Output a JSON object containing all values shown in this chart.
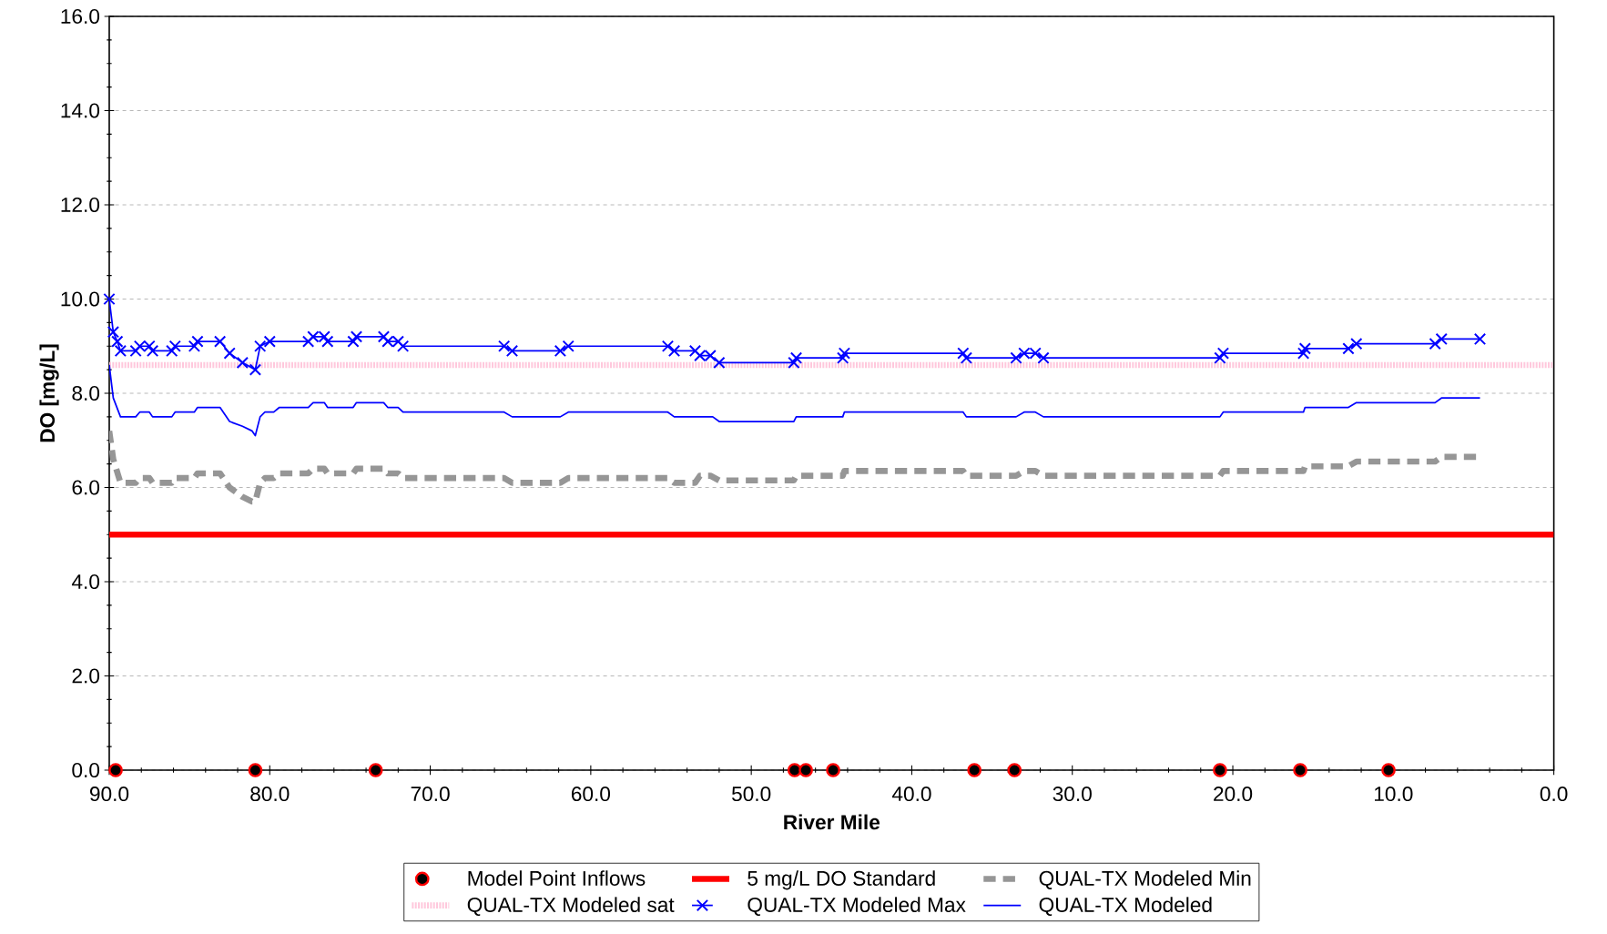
{
  "chart_data": {
    "type": "line",
    "xlabel": "River Mile",
    "ylabel": "DO [mg/L]",
    "xlim": [
      90,
      0
    ],
    "ylim": [
      0,
      16
    ],
    "xticks": [
      {
        "value": 90,
        "label": "90.0"
      },
      {
        "value": 80,
        "label": "80.0"
      },
      {
        "value": 70,
        "label": "70.0"
      },
      {
        "value": 60,
        "label": "60.0"
      },
      {
        "value": 50,
        "label": "50.0"
      },
      {
        "value": 40,
        "label": "40.0"
      },
      {
        "value": 30,
        "label": "30.0"
      },
      {
        "value": 20,
        "label": "20.0"
      },
      {
        "value": 10,
        "label": "10.0"
      },
      {
        "value": 0,
        "label": "0.0"
      }
    ],
    "yticks": [
      {
        "value": 0,
        "label": "0.0"
      },
      {
        "value": 2,
        "label": "2.0"
      },
      {
        "value": 4,
        "label": "4.0"
      },
      {
        "value": 6,
        "label": "6.0"
      },
      {
        "value": 8,
        "label": "8.0"
      },
      {
        "value": 10,
        "label": "10.0"
      },
      {
        "value": 12,
        "label": "12.0"
      },
      {
        "value": 14,
        "label": "14.0"
      },
      {
        "value": 16,
        "label": "16.0"
      }
    ],
    "grid": "y",
    "legend": "bottom",
    "series": [
      {
        "name": "Model Point Inflows",
        "type": "scatter",
        "marker": "circle",
        "color": "#ff0000",
        "x": [
          89.6,
          80.9,
          73.4,
          47.3,
          46.6,
          44.9,
          36.1,
          33.6,
          20.8,
          15.8,
          10.3
        ],
        "values": [
          0,
          0,
          0,
          0,
          0,
          0,
          0,
          0,
          0,
          0,
          0
        ]
      },
      {
        "name": "5 mg/L DO Standard",
        "line_style": "solid",
        "color": "#ff0000",
        "x": [
          90,
          0
        ],
        "values": [
          5,
          5
        ]
      },
      {
        "name": "QUAL-TX Modeled Min",
        "line_style": "dashed",
        "color": "#969696",
        "x": [
          90,
          89.75,
          89.3,
          88.35,
          88.1,
          87.5,
          87.3,
          86.1,
          85.9,
          84.7,
          84.5,
          83.1,
          82.5,
          82.1,
          81.7,
          81.1,
          80.9,
          80.6,
          80.3,
          79.75,
          79.4,
          77.6,
          77.3,
          76.6,
          76.4,
          74.8,
          74.6,
          72.9,
          72.65,
          72.0,
          71.7,
          65.4,
          64.9,
          61.9,
          61.4,
          55.2,
          54.8,
          53.5,
          53.2,
          52.55,
          52.0,
          47.35,
          47.2,
          44.3,
          44.2,
          36.8,
          36.6,
          33.5,
          33.0,
          32.3,
          31.8,
          20.8,
          20.6,
          15.6,
          15.5,
          12.8,
          12.3,
          7.4,
          7.0,
          4.6
        ],
        "values": [
          7.2,
          6.6,
          6.1,
          6.1,
          6.2,
          6.2,
          6.1,
          6.1,
          6.2,
          6.2,
          6.3,
          6.3,
          6.0,
          5.9,
          5.8,
          5.7,
          5.7,
          6.1,
          6.2,
          6.2,
          6.3,
          6.3,
          6.4,
          6.4,
          6.3,
          6.3,
          6.4,
          6.4,
          6.3,
          6.3,
          6.2,
          6.2,
          6.1,
          6.1,
          6.2,
          6.2,
          6.1,
          6.1,
          6.25,
          6.25,
          6.15,
          6.15,
          6.25,
          6.25,
          6.35,
          6.35,
          6.25,
          6.25,
          6.35,
          6.35,
          6.25,
          6.25,
          6.35,
          6.35,
          6.45,
          6.45,
          6.55,
          6.55,
          6.65,
          6.65
        ]
      },
      {
        "name": "QUAL-TX Modeled sat",
        "line_style": "dotted",
        "color": "#ffc8dc",
        "x": [
          90,
          0
        ],
        "values": [
          8.6,
          8.6
        ]
      },
      {
        "name": "QUAL-TX Modeled Max",
        "line_style": "solid",
        "marker": "cross",
        "color": "#0000ff",
        "x": [
          90,
          89.75,
          89.5,
          89.3,
          88.35,
          88.1,
          87.5,
          87.3,
          86.1,
          85.9,
          84.7,
          84.5,
          83.1,
          82.5,
          81.7,
          80.9,
          80.6,
          80.0,
          77.6,
          77.3,
          76.6,
          76.4,
          74.8,
          74.6,
          72.9,
          72.65,
          72.0,
          71.7,
          65.4,
          64.9,
          61.9,
          61.4,
          55.2,
          54.8,
          53.5,
          53.2,
          52.55,
          52.0,
          47.35,
          47.2,
          44.3,
          44.2,
          36.8,
          36.6,
          33.5,
          33.0,
          32.3,
          31.8,
          20.8,
          20.6,
          15.6,
          15.5,
          12.8,
          12.3,
          7.4,
          7.0,
          4.6
        ],
        "values": [
          10.0,
          9.3,
          9.1,
          8.9,
          8.9,
          9.0,
          9.0,
          8.9,
          8.9,
          9.0,
          9.0,
          9.1,
          9.1,
          8.85,
          8.65,
          8.5,
          9.0,
          9.1,
          9.1,
          9.2,
          9.2,
          9.1,
          9.1,
          9.2,
          9.2,
          9.1,
          9.1,
          9.0,
          9.0,
          8.9,
          8.9,
          9.0,
          9.0,
          8.9,
          8.9,
          8.8,
          8.8,
          8.65,
          8.65,
          8.75,
          8.75,
          8.85,
          8.85,
          8.75,
          8.75,
          8.85,
          8.85,
          8.75,
          8.75,
          8.85,
          8.85,
          8.95,
          8.95,
          9.05,
          9.05,
          9.15,
          9.15
        ]
      },
      {
        "name": "QUAL-TX Modeled",
        "line_style": "solid",
        "color": "#0000ff",
        "x": [
          90,
          89.75,
          89.3,
          88.35,
          88.1,
          87.5,
          87.3,
          86.1,
          85.9,
          84.7,
          84.5,
          83.1,
          82.5,
          82.1,
          81.7,
          81.1,
          80.9,
          80.6,
          80.3,
          79.75,
          79.4,
          77.6,
          77.3,
          76.6,
          76.4,
          74.8,
          74.6,
          72.9,
          72.65,
          72.0,
          71.7,
          65.4,
          64.9,
          61.9,
          61.4,
          55.2,
          54.8,
          52.4,
          52.0,
          47.35,
          47.2,
          44.3,
          44.2,
          36.8,
          36.6,
          33.5,
          33.0,
          32.3,
          31.8,
          20.8,
          20.6,
          15.6,
          15.5,
          12.8,
          12.3,
          7.4,
          7.0,
          4.6
        ],
        "values": [
          8.6,
          7.9,
          7.5,
          7.5,
          7.6,
          7.6,
          7.5,
          7.5,
          7.6,
          7.6,
          7.7,
          7.7,
          7.4,
          7.35,
          7.3,
          7.2,
          7.1,
          7.5,
          7.6,
          7.6,
          7.7,
          7.7,
          7.8,
          7.8,
          7.7,
          7.7,
          7.8,
          7.8,
          7.7,
          7.7,
          7.6,
          7.6,
          7.5,
          7.5,
          7.6,
          7.6,
          7.5,
          7.5,
          7.4,
          7.4,
          7.5,
          7.5,
          7.6,
          7.6,
          7.5,
          7.5,
          7.6,
          7.6,
          7.5,
          7.5,
          7.6,
          7.6,
          7.7,
          7.7,
          7.8,
          7.8,
          7.9,
          7.9
        ]
      }
    ]
  }
}
